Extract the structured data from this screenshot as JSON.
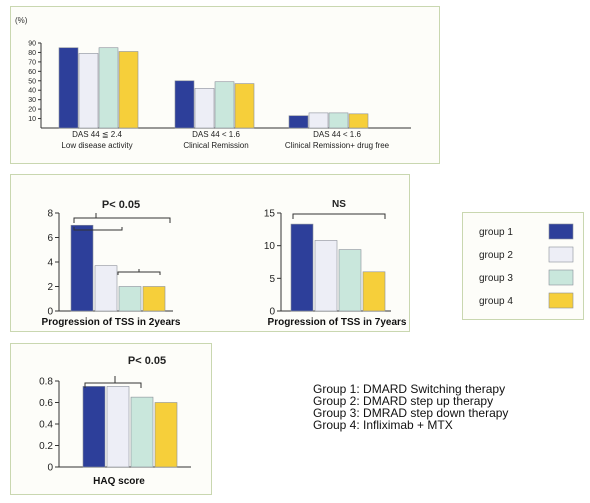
{
  "colors": {
    "group1": "#2d3f9a",
    "group2": "#edeef6",
    "group3": "#c9e7dc",
    "group4": "#f6cf3a"
  },
  "legend": {
    "items": [
      "group 1",
      "group 2",
      "group 3",
      "group 4"
    ]
  },
  "descriptions": [
    "Group 1: DMARD Switching therapy",
    "Group 2: DMARD step up therapy",
    "Group 3: DMRAD step down therapy",
    "Group 4: Infliximab + MTX"
  ],
  "chart_data": [
    {
      "type": "bar",
      "ylabel": "(%)",
      "ylim": [
        0,
        90
      ],
      "yticks": [
        "90",
        "80",
        "70",
        "60",
        "50",
        "40",
        "30",
        "20",
        "10"
      ],
      "categories": [
        [
          "DAS 44 ≦ 2.4",
          "Low disease activity"
        ],
        [
          "DAS 44 < 1.6",
          "Clinical Remission"
        ],
        [
          "DAS 44 < 1.6",
          "Clinical Remission+ drug free"
        ]
      ],
      "series": [
        {
          "name": "group 1",
          "values": [
            85,
            50,
            13
          ]
        },
        {
          "name": "group 2",
          "values": [
            79,
            42,
            16
          ]
        },
        {
          "name": "group 3",
          "values": [
            85,
            49,
            16
          ]
        },
        {
          "name": "group 4",
          "values": [
            81,
            47,
            15
          ]
        }
      ]
    },
    {
      "type": "bar",
      "xlabel": "Progression of TSS in 2years",
      "ylim": [
        0,
        8
      ],
      "yticks": [
        "8",
        "6",
        "4",
        "2",
        "0"
      ],
      "annotation": "P< 0.05",
      "series": [
        {
          "name": "group 1",
          "values": [
            7.0
          ]
        },
        {
          "name": "group 2",
          "values": [
            3.7
          ]
        },
        {
          "name": "group 3",
          "values": [
            2.0
          ]
        },
        {
          "name": "group 4",
          "values": [
            2.0
          ]
        }
      ]
    },
    {
      "type": "bar",
      "xlabel": "Progression of TSS in 7years",
      "ylim": [
        0,
        15
      ],
      "yticks": [
        "15",
        "10",
        "5",
        "0"
      ],
      "annotation": "NS",
      "series": [
        {
          "name": "group 1",
          "values": [
            13.3
          ]
        },
        {
          "name": "group 2",
          "values": [
            10.8
          ]
        },
        {
          "name": "group 3",
          "values": [
            9.4
          ]
        },
        {
          "name": "group 4",
          "values": [
            6.0
          ]
        }
      ]
    },
    {
      "type": "bar",
      "xlabel": "HAQ score",
      "ylim": [
        0,
        0.8
      ],
      "yticks": [
        "0.8",
        "0.6",
        "0.4",
        "0.2",
        "0"
      ],
      "annotation": "P< 0.05",
      "series": [
        {
          "name": "group 1",
          "values": [
            0.75
          ]
        },
        {
          "name": "group 2",
          "values": [
            0.75
          ]
        },
        {
          "name": "group 3",
          "values": [
            0.65
          ]
        },
        {
          "name": "group 4",
          "values": [
            0.6
          ]
        }
      ]
    }
  ]
}
